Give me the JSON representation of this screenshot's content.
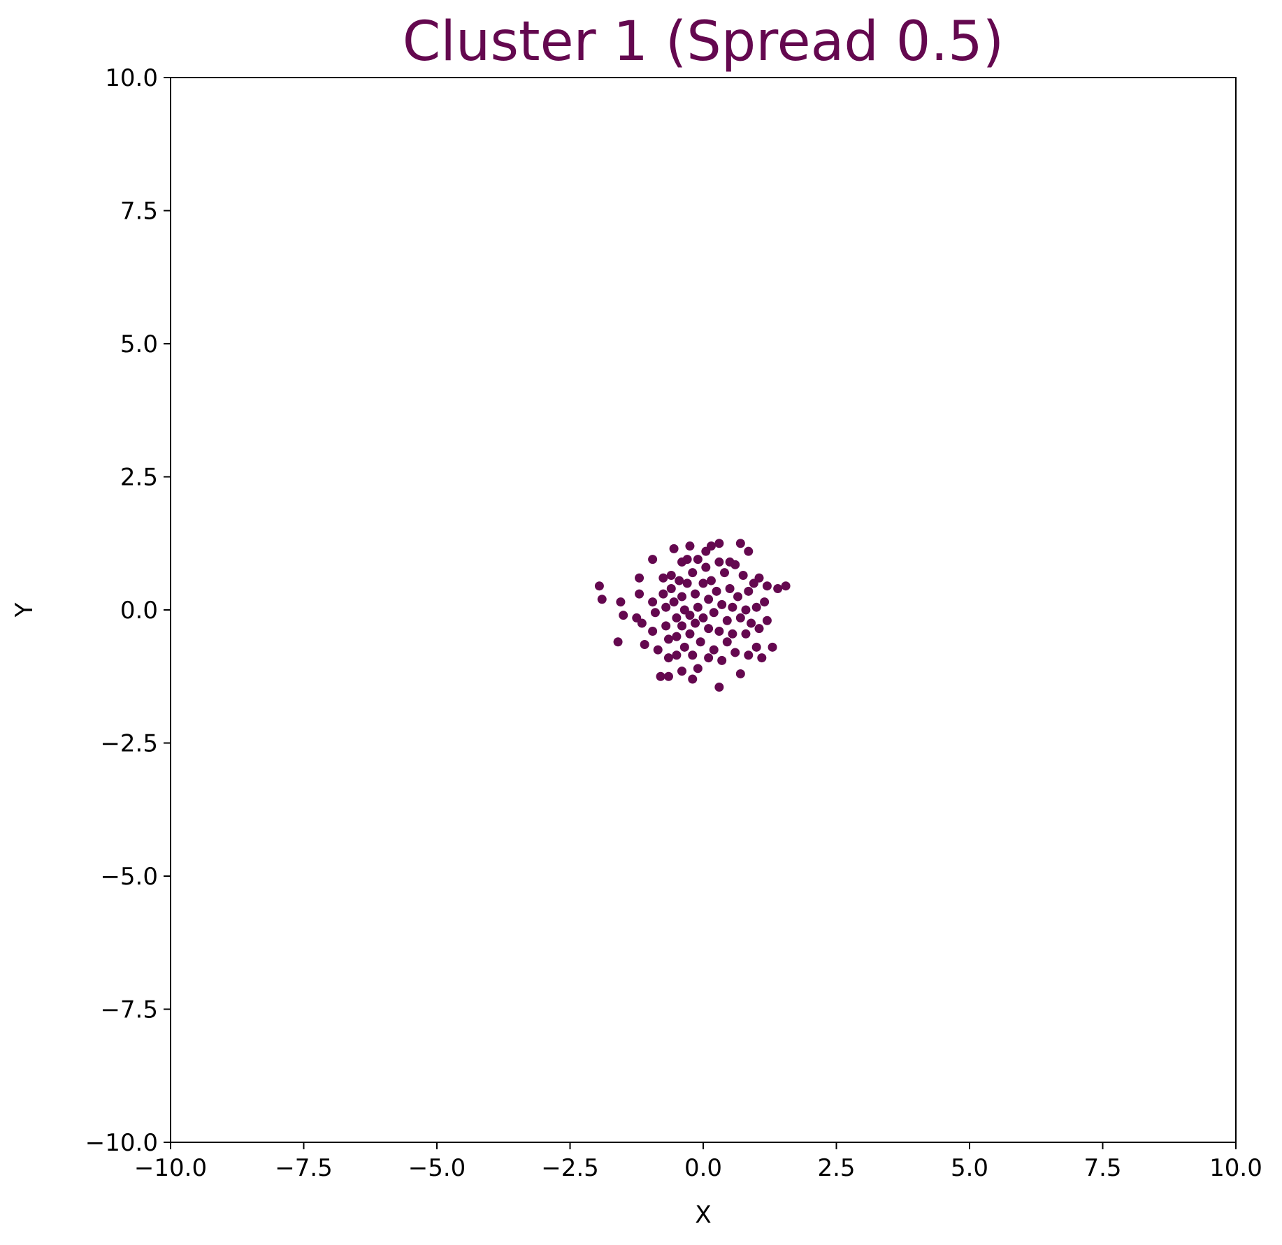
{
  "chart_data": {
    "type": "scatter",
    "title": "Cluster 1 (Spread 0.5)",
    "xlabel": "X",
    "ylabel": "Y",
    "xlim": [
      -10,
      10
    ],
    "ylim": [
      -10,
      10
    ],
    "grid": false,
    "x_ticks": [
      -10,
      -7.5,
      -5,
      -2.5,
      0,
      2.5,
      5,
      7.5,
      10
    ],
    "y_ticks": [
      -10,
      -7.5,
      -5,
      -2.5,
      0,
      2.5,
      5,
      7.5,
      10
    ],
    "x_tick_labels": [
      "−10.0",
      "−7.5",
      "−5.0",
      "−2.5",
      "0.0",
      "2.5",
      "5.0",
      "7.5",
      "10.0"
    ],
    "y_tick_labels": [
      "−10.0",
      "−7.5",
      "−5.0",
      "−2.5",
      "0.0",
      "2.5",
      "5.0",
      "7.5",
      "10.0"
    ],
    "series": [
      {
        "name": "Cluster 1",
        "color": "#64084f",
        "points": [
          [
            -1.95,
            0.45
          ],
          [
            -1.9,
            0.2
          ],
          [
            -1.55,
            0.15
          ],
          [
            -1.5,
            -0.1
          ],
          [
            -1.6,
            -0.6
          ],
          [
            -1.2,
            0.6
          ],
          [
            -1.2,
            0.3
          ],
          [
            -1.25,
            -0.15
          ],
          [
            -1.15,
            -0.25
          ],
          [
            -1.1,
            -0.65
          ],
          [
            -0.95,
            0.95
          ],
          [
            -0.95,
            0.15
          ],
          [
            -0.9,
            -0.05
          ],
          [
            -0.95,
            -0.4
          ],
          [
            -0.85,
            -0.75
          ],
          [
            -0.8,
            -1.25
          ],
          [
            -0.75,
            0.6
          ],
          [
            -0.75,
            0.3
          ],
          [
            -0.7,
            0.05
          ],
          [
            -0.7,
            -0.3
          ],
          [
            -0.65,
            -0.55
          ],
          [
            -0.65,
            -0.9
          ],
          [
            -0.65,
            -1.25
          ],
          [
            -0.6,
            0.65
          ],
          [
            -0.6,
            0.4
          ],
          [
            -0.55,
            1.15
          ],
          [
            -0.55,
            0.15
          ],
          [
            -0.5,
            -0.15
          ],
          [
            -0.5,
            -0.5
          ],
          [
            -0.5,
            -0.85
          ],
          [
            -0.45,
            0.55
          ],
          [
            -0.4,
            0.9
          ],
          [
            -0.4,
            0.25
          ],
          [
            -0.4,
            -0.3
          ],
          [
            -0.4,
            -1.15
          ],
          [
            -0.35,
            0.0
          ],
          [
            -0.35,
            -0.7
          ],
          [
            -0.3,
            0.95
          ],
          [
            -0.3,
            0.5
          ],
          [
            -0.25,
            1.2
          ],
          [
            -0.25,
            -0.1
          ],
          [
            -0.25,
            -0.45
          ],
          [
            -0.2,
            0.7
          ],
          [
            -0.2,
            -1.3
          ],
          [
            -0.2,
            -0.85
          ],
          [
            -0.15,
            0.3
          ],
          [
            -0.15,
            -0.25
          ],
          [
            -0.1,
            0.95
          ],
          [
            -0.1,
            0.05
          ],
          [
            -0.1,
            -1.1
          ],
          [
            -0.05,
            -0.6
          ],
          [
            0.0,
            0.5
          ],
          [
            0.0,
            -0.15
          ],
          [
            0.05,
            0.8
          ],
          [
            0.05,
            1.1
          ],
          [
            0.1,
            0.2
          ],
          [
            0.1,
            -0.35
          ],
          [
            0.1,
            -0.9
          ],
          [
            0.15,
            1.2
          ],
          [
            0.15,
            0.55
          ],
          [
            0.2,
            -0.05
          ],
          [
            0.2,
            -0.75
          ],
          [
            0.25,
            0.35
          ],
          [
            0.3,
            1.25
          ],
          [
            0.3,
            0.9
          ],
          [
            0.3,
            -0.4
          ],
          [
            0.3,
            -1.45
          ],
          [
            0.35,
            0.1
          ],
          [
            0.35,
            -0.95
          ],
          [
            0.4,
            0.7
          ],
          [
            0.45,
            -0.2
          ],
          [
            0.45,
            -0.6
          ],
          [
            0.5,
            0.9
          ],
          [
            0.5,
            0.4
          ],
          [
            0.55,
            0.05
          ],
          [
            0.55,
            -0.45
          ],
          [
            0.6,
            0.85
          ],
          [
            0.6,
            -0.8
          ],
          [
            0.65,
            0.25
          ],
          [
            0.7,
            1.25
          ],
          [
            0.7,
            -0.15
          ],
          [
            0.7,
            -1.2
          ],
          [
            0.75,
            0.65
          ],
          [
            0.8,
            0.0
          ],
          [
            0.8,
            -0.45
          ],
          [
            0.85,
            1.1
          ],
          [
            0.85,
            0.35
          ],
          [
            0.85,
            -0.85
          ],
          [
            0.9,
            -0.25
          ],
          [
            0.95,
            0.5
          ],
          [
            1.0,
            0.05
          ],
          [
            1.0,
            -0.7
          ],
          [
            1.05,
            0.6
          ],
          [
            1.05,
            -0.35
          ],
          [
            1.1,
            -0.9
          ],
          [
            1.15,
            0.15
          ],
          [
            1.2,
            0.45
          ],
          [
            1.2,
            -0.2
          ],
          [
            1.3,
            -0.7
          ],
          [
            1.4,
            0.4
          ],
          [
            1.55,
            0.45
          ]
        ]
      }
    ]
  }
}
